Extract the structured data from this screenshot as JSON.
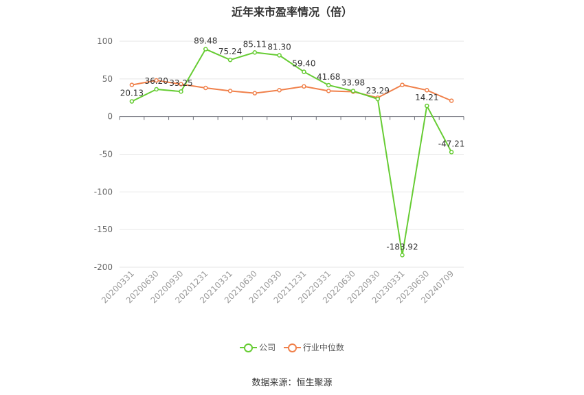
{
  "chart_data": {
    "type": "line",
    "title": "近年来市盈率情况（倍）",
    "categories": [
      "20200331",
      "20200630",
      "20200930",
      "20201231",
      "20210331",
      "20210630",
      "20210930",
      "20211231",
      "20220331",
      "20220630",
      "20220930",
      "20230331",
      "20230630",
      "20240709"
    ],
    "series": [
      {
        "name": "公司",
        "color": "#66cc33",
        "values": [
          20.13,
          36.2,
          33.25,
          89.48,
          75.24,
          85.11,
          81.3,
          59.4,
          41.68,
          33.98,
          23.29,
          -183.92,
          14.21,
          -47.21
        ]
      },
      {
        "name": "行业中位数",
        "color": "#f0804a",
        "values": [
          42,
          48,
          43,
          38,
          34,
          31,
          35,
          40,
          34,
          33,
          25,
          42,
          35,
          21
        ]
      }
    ],
    "yticks": [
      100,
      50,
      0,
      -50,
      -100,
      -150,
      -200
    ],
    "ylim": [
      -200,
      100
    ],
    "xlabel": "",
    "ylabel": "",
    "grid": true,
    "legend": "bottom-center"
  },
  "footer": {
    "source": "数据来源：恒生聚源"
  }
}
